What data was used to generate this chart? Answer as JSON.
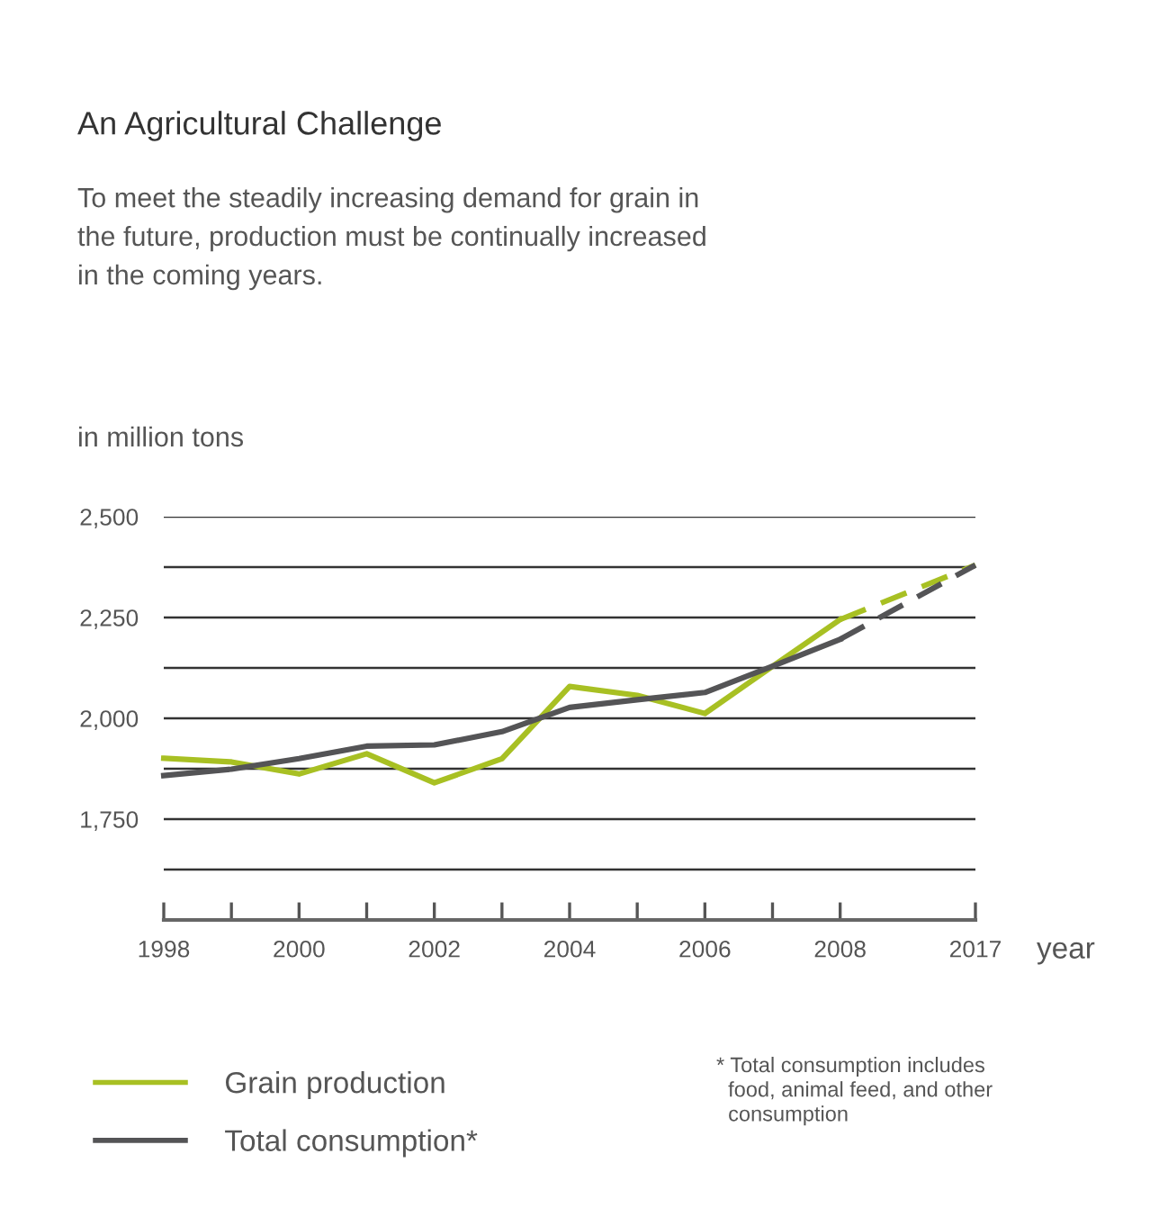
{
  "chart_data": {
    "type": "line",
    "title": "An Agricultural Challenge",
    "subtitle": "To meet the steadily increasing demand for grain in\nthe future, production must be continually increased\nin the coming years.",
    "ylabel": "in million tons",
    "xlabel": "year",
    "categories": [
      "1998",
      null,
      "2000",
      null,
      "2002",
      null,
      "2004",
      null,
      "2006",
      null,
      "2008",
      null,
      "2017"
    ],
    "series": [
      {
        "name": "Grain production",
        "color": "#a8c023",
        "line_style": "solid",
        "values": [
          1901,
          1892,
          1862,
          1912,
          1840,
          1900,
          2079,
          2057,
          2012,
          2129,
          2245,
          null,
          null
        ]
      },
      {
        "name": "Total consumption*",
        "color": "#545456",
        "line_style": "solid",
        "values": [
          1858,
          1874,
          1900,
          1931,
          1934,
          1967,
          2027,
          2046,
          2064,
          2129,
          2196,
          null,
          null
        ]
      },
      {
        "color": "#a8c023",
        "line_style": "dashed",
        "values": [
          null,
          null,
          null,
          null,
          null,
          null,
          null,
          null,
          null,
          null,
          2245,
          null,
          2380
        ]
      },
      {
        "color": "#545456",
        "line_style": "dashed",
        "values": [
          null,
          null,
          null,
          null,
          null,
          null,
          null,
          null,
          null,
          null,
          2196,
          null,
          2380
        ]
      }
    ],
    "ylim": [
      1500,
      2500
    ],
    "yticks": [
      {
        "value": 1625,
        "label": null
      },
      {
        "value": 1750,
        "label": "1,750"
      },
      {
        "value": 1875,
        "label": null
      },
      {
        "value": 2000,
        "label": "2,000"
      },
      {
        "value": 2125,
        "label": null
      },
      {
        "value": 2250,
        "label": "2,250"
      },
      {
        "value": 2375,
        "label": null
      },
      {
        "value": 2500,
        "label": "2,500"
      }
    ],
    "grid": "y",
    "legend": "bottom left",
    "annotations": [
      "* Total consumption includes\n  food, animal feed, and other\n  consumption"
    ]
  }
}
